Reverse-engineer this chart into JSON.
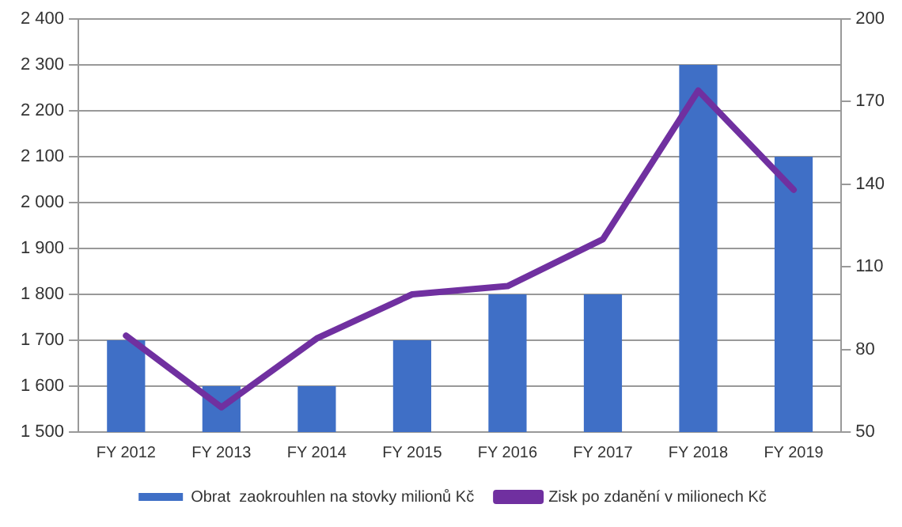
{
  "chart_data": {
    "type": "bar",
    "categories": [
      "FY 2012",
      "FY 2013",
      "FY 2014",
      "FY 2015",
      "FY 2016",
      "FY 2017",
      "FY 2018",
      "FY 2019"
    ],
    "series": [
      {
        "name": "Obrat  zaokrouhlen na stovky milionů Kč",
        "color": "#3f6fc6",
        "values": [
          1700,
          1600,
          1600,
          1700,
          1800,
          1800,
          2300,
          2100
        ]
      },
      {
        "name": "Zisk po zdanění v milionech Kč",
        "type": "line",
        "axis": "y2",
        "color": "#7030a0",
        "values": [
          85,
          59,
          84,
          100,
          103,
          120,
          174,
          138
        ]
      }
    ],
    "ylim": [
      1500,
      2400
    ],
    "yticks": [
      {
        "value": 1500,
        "label": "1 500"
      },
      {
        "value": 1600,
        "label": "1 600"
      },
      {
        "value": 1700,
        "label": "1 700"
      },
      {
        "value": 1800,
        "label": "1 800"
      },
      {
        "value": 1900,
        "label": "1 900"
      },
      {
        "value": 2000,
        "label": "2 000"
      },
      {
        "value": 2100,
        "label": "2 100"
      },
      {
        "value": 2200,
        "label": "2 200"
      },
      {
        "value": 2300,
        "label": "2 300"
      },
      {
        "value": 2400,
        "label": "2 400"
      }
    ],
    "y2lim": [
      50,
      200
    ],
    "y2ticks": [
      50,
      80,
      110,
      140,
      170,
      200
    ],
    "grid": "y",
    "legend": "bottom",
    "marker": "none",
    "line_style": "solid"
  }
}
